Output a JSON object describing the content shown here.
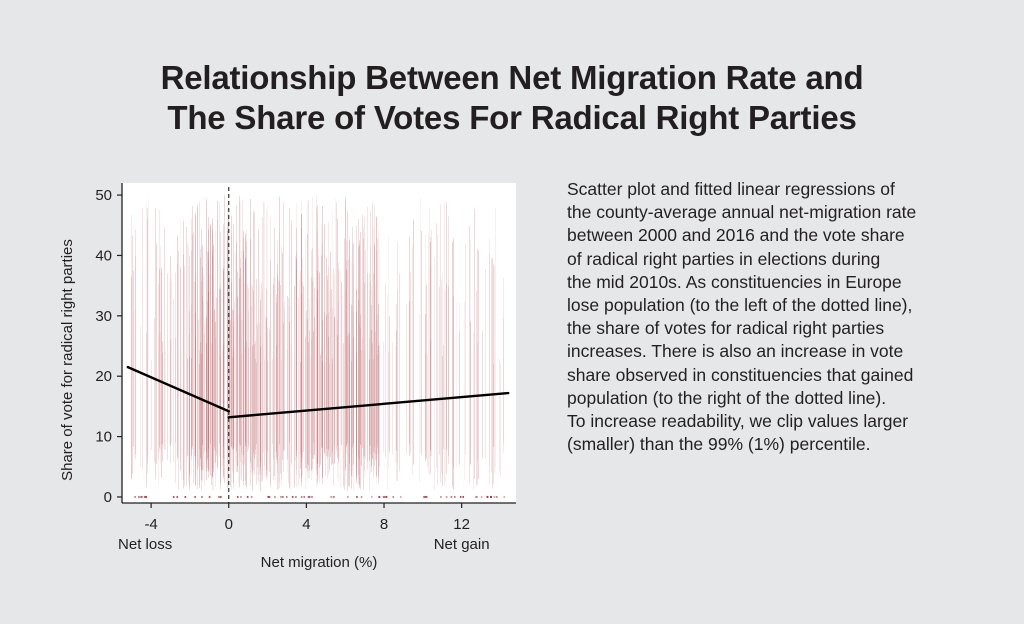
{
  "title": {
    "line1": "Relationship Between Net Migration Rate and",
    "line2": "The Share of Votes For Radical Right Parties"
  },
  "description": "Scatter plot and fitted linear regressions of\nthe county-average annual net-migration rate\nbetween 2000 and 2016 and the vote share\nof radical right parties in elections during\nthe mid 2010s. As constituencies in Europe\nlose population (to the left of the dotted line),\nthe share of votes for radical right parties\nincreases. There is also an increase in vote\nshare observed in constituencies that gained\npopulation (to the right of the dotted line).\nTo increase readability, we clip values larger\n(smaller) than the 99% (1%) percentile.",
  "colors": {
    "background": "#e6e7e8",
    "plot_background": "#ffffff",
    "points": "#a3262e",
    "fit_line": "#000000",
    "text": "#231f20"
  },
  "chart_data": {
    "type": "scatter",
    "title": "",
    "xlabel": "Net migration (%)",
    "ylabel": "Share of vote for radical right parties",
    "xlim": [
      -5.5,
      14.8
    ],
    "ylim": [
      -1,
      52
    ],
    "x_ticks": [
      -4,
      0,
      4,
      8,
      12
    ],
    "x_tick_labels": [
      "-4",
      "0",
      "4",
      "8",
      "12"
    ],
    "y_ticks": [
      0,
      10,
      20,
      30,
      40,
      50
    ],
    "y_tick_labels": [
      "0",
      "10",
      "20",
      "30",
      "40",
      "50"
    ],
    "x_end_labels": {
      "left": "Net loss",
      "right": "Net gain"
    },
    "reference_line": {
      "x": 0,
      "style": "dashed"
    },
    "fit_lines": [
      {
        "name": "Net loss",
        "x": [
          -5.2,
          0
        ],
        "y": [
          21.5,
          14.2
        ]
      },
      {
        "name": "Net gain",
        "x": [
          0,
          14.4
        ],
        "y": [
          13.2,
          17.2
        ]
      }
    ],
    "point_density_note": "dense vertical bands of county observations concentrated between -2 and 8, many at 0"
  }
}
